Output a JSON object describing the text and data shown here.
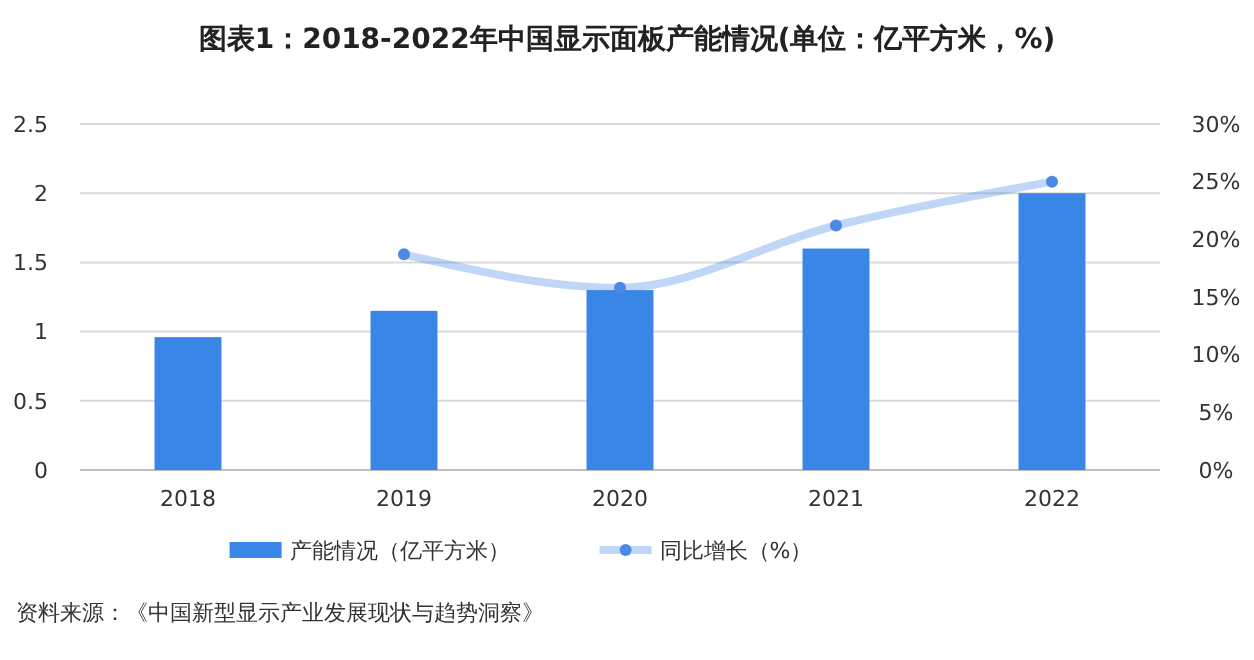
{
  "chart_data": {
    "type": "bar",
    "title": "图表1：2018-2022年中国显示面板产能情况(单位：亿平方米，%)",
    "categories": [
      "2018",
      "2019",
      "2020",
      "2021",
      "2022"
    ],
    "series": [
      {
        "name": "产能情况（亿平方米）",
        "color": "#3a86e6",
        "values": [
          0.96,
          1.15,
          1.3,
          1.6,
          2.0
        ]
      },
      {
        "name": "同比增长（%）",
        "type": "line",
        "axis": "y2",
        "color": "#4a8ae6",
        "values": [
          null,
          18.7,
          15.8,
          21.2,
          25
        ]
      }
    ],
    "ylim": [
      0,
      2.5
    ],
    "yticks": [
      0,
      0.5,
      1,
      1.5,
      2,
      2.5
    ],
    "y2lim": [
      0,
      30
    ],
    "y2ticks": [
      {
        "value": 0,
        "label": "0%"
      },
      {
        "value": 5,
        "label": "5%"
      },
      {
        "value": 10,
        "label": "10%"
      },
      {
        "value": 15,
        "label": "15%"
      },
      {
        "value": 20,
        "label": "20%"
      },
      {
        "value": 25,
        "label": "25%"
      },
      {
        "value": 30,
        "label": "30%"
      }
    ],
    "grid": "y",
    "legend": "bottom",
    "marker": "circle",
    "annotations": [
      "资料来源：《中国新型显示产业发展现状与趋势洞察》"
    ]
  }
}
